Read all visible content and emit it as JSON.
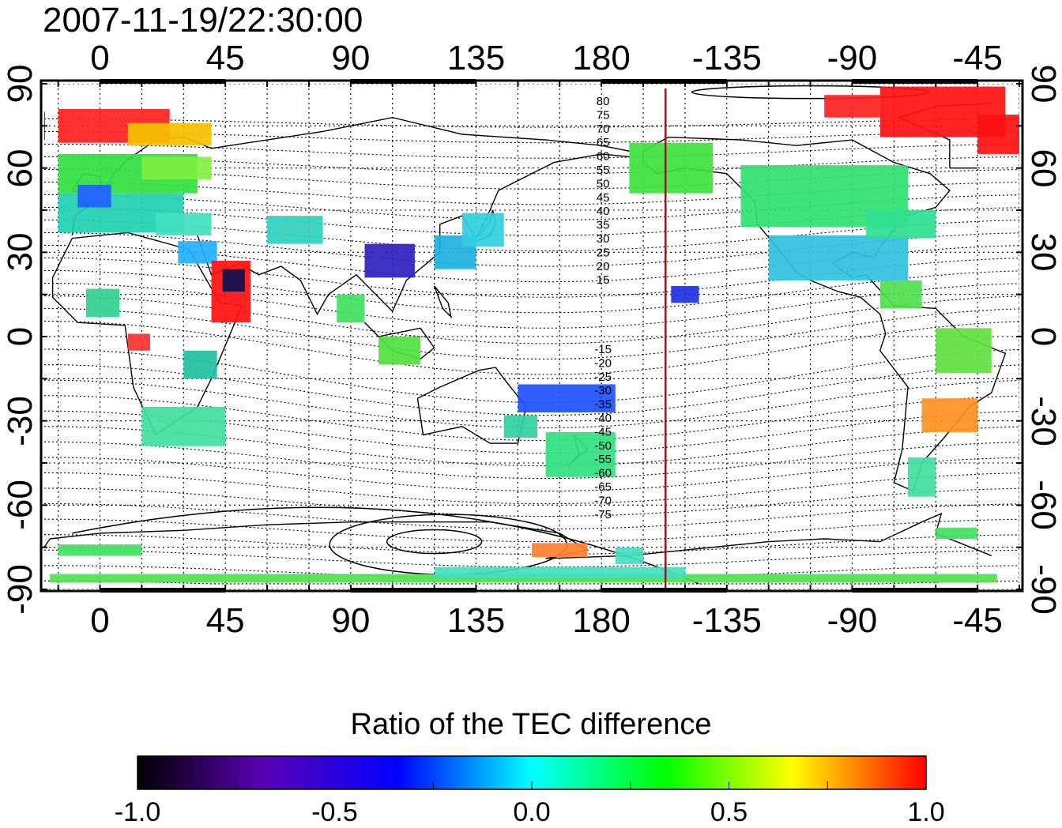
{
  "title": "2007-11-19/22:30:00",
  "colorbar": {
    "title": "Ratio of the TEC difference",
    "ticks": [
      "-1.0",
      "-0.5",
      "0.0",
      "0.5",
      "1.0"
    ],
    "min": -1.0,
    "max": 1.0,
    "colors": [
      "#000000",
      "#5a00b4",
      "#0000ff",
      "#00ffff",
      "#00ff00",
      "#ffff00",
      "#ff0000"
    ]
  },
  "axes": {
    "lon_ticks_top": [
      "0",
      "45",
      "90",
      "135",
      "180",
      "-135",
      "-90",
      "-45"
    ],
    "lon_ticks_bottom": [
      "0",
      "45",
      "90",
      "135",
      "180",
      "-135",
      "-90",
      "-45"
    ],
    "lat_ticks_left": [
      "90",
      "60",
      "30",
      "0",
      "-30",
      "-60",
      "-90"
    ],
    "lat_ticks_right": [
      "90",
      "60",
      "30",
      "0",
      "-30",
      "-60",
      "-90"
    ],
    "lon_range": [
      -20,
      330
    ],
    "lat_range": [
      -90,
      90
    ]
  },
  "map": {
    "meridian_marker_lon": -157,
    "meridian_marker_color": "#cc0000",
    "magnetic_lat_labels_north": [
      "80",
      "75",
      "70",
      "65",
      "60",
      "55",
      "50",
      "45",
      "40",
      "35",
      "30",
      "25",
      "20",
      "15"
    ],
    "magnetic_lat_labels_south": [
      "-15",
      "-20",
      "-25",
      "-30",
      "-35",
      "-40",
      "-45",
      "-50",
      "-55",
      "-60",
      "-65",
      "-70",
      "-75"
    ]
  }
}
